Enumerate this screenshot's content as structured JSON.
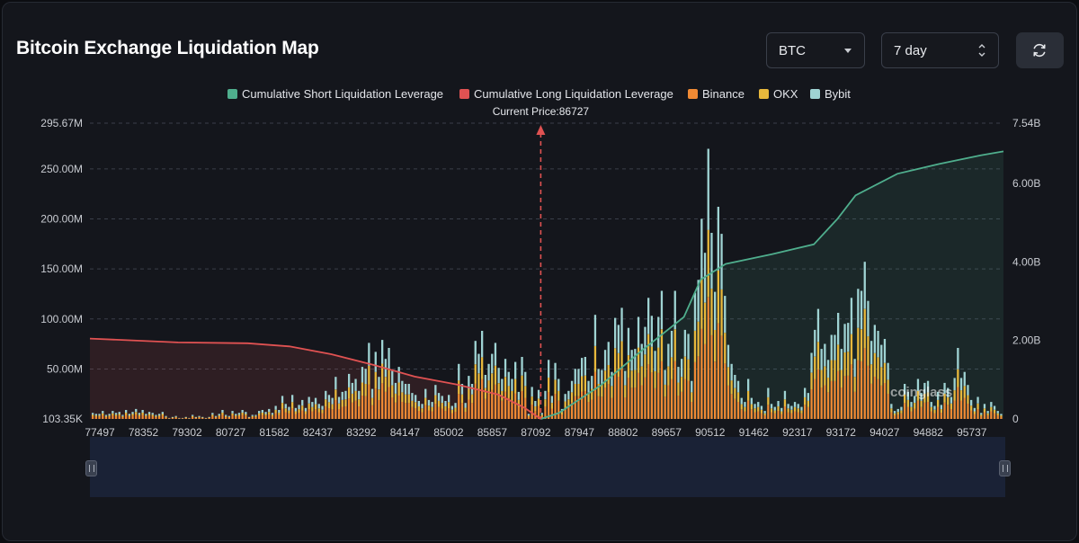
{
  "header": {
    "title": "Bitcoin Exchange Liquidation Map",
    "coin_select": "BTC",
    "range_select": "7 day"
  },
  "legend": [
    {
      "label": "Cumulative Short Liquidation Leverage",
      "color": "#4fae8d"
    },
    {
      "label": "Cumulative Long Liquidation Leverage",
      "color": "#e05252"
    },
    {
      "label": "Binance",
      "color": "#f08a34"
    },
    {
      "label": "OKX",
      "color": "#e8b83c"
    },
    {
      "label": "Bybit",
      "color": "#9fd3d3"
    }
  ],
  "current_price_label": "Current Price:86727",
  "watermark": "coinglass",
  "chart_data": {
    "type": "bar",
    "title": "Bitcoin Exchange Liquidation Map",
    "x_tick_labels": [
      "77497",
      "78352",
      "79302",
      "80727",
      "81582",
      "82437",
      "83292",
      "84147",
      "85002",
      "85857",
      "87092",
      "87947",
      "88802",
      "89657",
      "90512",
      "91462",
      "92317",
      "93172",
      "94027",
      "94882",
      "95737"
    ],
    "y_left_tick_labels": [
      "103.35K",
      "50.00M",
      "100.00M",
      "150.00M",
      "200.00M",
      "250.00M",
      "295.67M"
    ],
    "y_left_range": [
      0.10335,
      295.67
    ],
    "y_left_unit": "M",
    "y_right_tick_labels": [
      "0",
      "2.00B",
      "4.00B",
      "6.00B",
      "7.54B"
    ],
    "y_right_range": [
      0,
      7.54
    ],
    "y_right_unit": "B",
    "current_price": 86727,
    "x_range": [
      77497,
      96200
    ],
    "bars_total_M": [
      6,
      5,
      5,
      8,
      4,
      5,
      8,
      6,
      7,
      4,
      9,
      5,
      7,
      10,
      6,
      9,
      5,
      7,
      6,
      4,
      5,
      7,
      3,
      1,
      2,
      3,
      1,
      1,
      2,
      1,
      4,
      2,
      3,
      2,
      1,
      2,
      6,
      3,
      5,
      9,
      4,
      3,
      8,
      5,
      6,
      9,
      7,
      2,
      4,
      4,
      8,
      9,
      7,
      10,
      6,
      13,
      9,
      23,
      15,
      12,
      24,
      11,
      14,
      19,
      11,
      22,
      17,
      21,
      15,
      13,
      28,
      24,
      21,
      42,
      22,
      27,
      28,
      45,
      36,
      40,
      28,
      52,
      50,
      76,
      30,
      67,
      42,
      79,
      60,
      71,
      48,
      36,
      52,
      38,
      35,
      35,
      26,
      24,
      18,
      15,
      30,
      19,
      17,
      34,
      26,
      23,
      18,
      24,
      13,
      16,
      55,
      35,
      16,
      43,
      35,
      78,
      65,
      88,
      44,
      55,
      65,
      76,
      51,
      40,
      60,
      47,
      40,
      57,
      27,
      62,
      47,
      5,
      32,
      18,
      29,
      6,
      28,
      59,
      23,
      56,
      40,
      10,
      25,
      28,
      38,
      50,
      50,
      61,
      62,
      38,
      43,
      104,
      50,
      49,
      69,
      77,
      47,
      101,
      94,
      111,
      48,
      91,
      69,
      70,
      102,
      75,
      92,
      121,
      103,
      68,
      102,
      128,
      49,
      75,
      88,
      128,
      52,
      60,
      89,
      85,
      38,
      126,
      139,
      200,
      166,
      270,
      186,
      127,
      212,
      185,
      123,
      74,
      55,
      44,
      38,
      21,
      17,
      40,
      21,
      15,
      17,
      13,
      8,
      31,
      15,
      12,
      18,
      11,
      28,
      15,
      13,
      17,
      15,
      12,
      31,
      26,
      66,
      89,
      110,
      70,
      75,
      59,
      84,
      84,
      106,
      70,
      95,
      96,
      121,
      60,
      130,
      128,
      157,
      118,
      78,
      94,
      88,
      74,
      80,
      56,
      15,
      8,
      10,
      12,
      35,
      27,
      17,
      23,
      40,
      26,
      36,
      38,
      17,
      13,
      27,
      14,
      36,
      31,
      22,
      41,
      71,
      41,
      47,
      34,
      19,
      11,
      22,
      6,
      15,
      8,
      17,
      13,
      8,
      5
    ],
    "long_cumulative_B": {
      "x": [
        77497,
        79302,
        80727,
        81582,
        82437,
        83292,
        84147,
        85002,
        85857,
        86400,
        86727
      ],
      "y": [
        2.05,
        1.95,
        1.93,
        1.85,
        1.65,
        1.38,
        1.08,
        0.88,
        0.62,
        0.28,
        0.0
      ]
    },
    "short_cumulative_B": {
      "x": [
        86727,
        87092,
        87947,
        88802,
        89657,
        90000,
        90512,
        91462,
        92317,
        92800,
        93172,
        94027,
        94882,
        95737,
        96200
      ],
      "y": [
        0.0,
        0.15,
        0.85,
        1.75,
        2.6,
        3.55,
        3.95,
        4.2,
        4.45,
        5.1,
        5.7,
        6.25,
        6.5,
        6.72,
        6.82
      ]
    }
  }
}
